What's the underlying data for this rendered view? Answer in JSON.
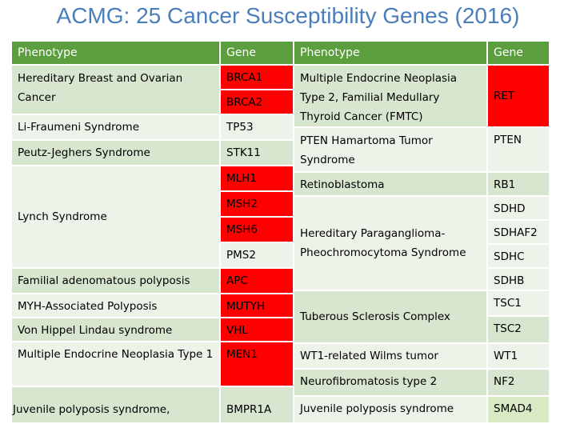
{
  "title": "ACMG: 25 Cancer Susceptibility Genes (2016)",
  "headers": {
    "phenotype": "Phenotype",
    "gene": "Gene"
  },
  "left": {
    "hboc": "Hereditary Breast and Ovarian Cancer",
    "brca1": "BRCA1",
    "brca2": "BRCA2",
    "lfs": "Li-Fraumeni Syndrome",
    "tp53": "TP53",
    "pjs": "Peutz-Jeghers Syndrome",
    "stk11": "STK11",
    "lynch": "Lynch Syndrome",
    "mlh1": "MLH1",
    "msh2": "MSH2",
    "msh6": "MSH6",
    "pms2": "PMS2",
    "fap": "Familial adenomatous polyposis",
    "apc": "APC",
    "map": "MYH-Associated Polyposis",
    "mutyh": "MUTYH",
    "vhl_pheno": "Von Hippel Lindau syndrome",
    "vhl": "VHL",
    "men1_pheno": "Multiple Endocrine Neoplasia Type 1",
    "men1": "MEN1",
    "jps": "Juvenile polyposis syndrome,",
    "bmpr1a": "BMPR1A"
  },
  "right": {
    "men2": "Multiple Endocrine Neoplasia Type 2, Familial Medullary Thyroid Cancer (FMTC)",
    "ret": "RET",
    "phts": "PTEN Hamartoma Tumor Syndrome",
    "pten": "PTEN",
    "rb": "Retinoblastoma",
    "rb1": "RB1",
    "pgl": "Hereditary Paraganglioma-Pheochromocytoma Syndrome",
    "sdhd": "SDHD",
    "sdhaf2": "SDHAF2",
    "sdhc": "SDHC",
    "sdhb": "SDHB",
    "tsc": "Tuberous Sclerosis Complex",
    "tsc1": "TSC1",
    "tsc2": "TSC2",
    "wt": "WT1-related Wilms tumor",
    "wt1": "WT1",
    "nf2_pheno": "Neurofibromatosis type 2",
    "nf2": "NF2",
    "jps": "Juvenile polyposis syndrome",
    "smad4": "SMAD4"
  }
}
